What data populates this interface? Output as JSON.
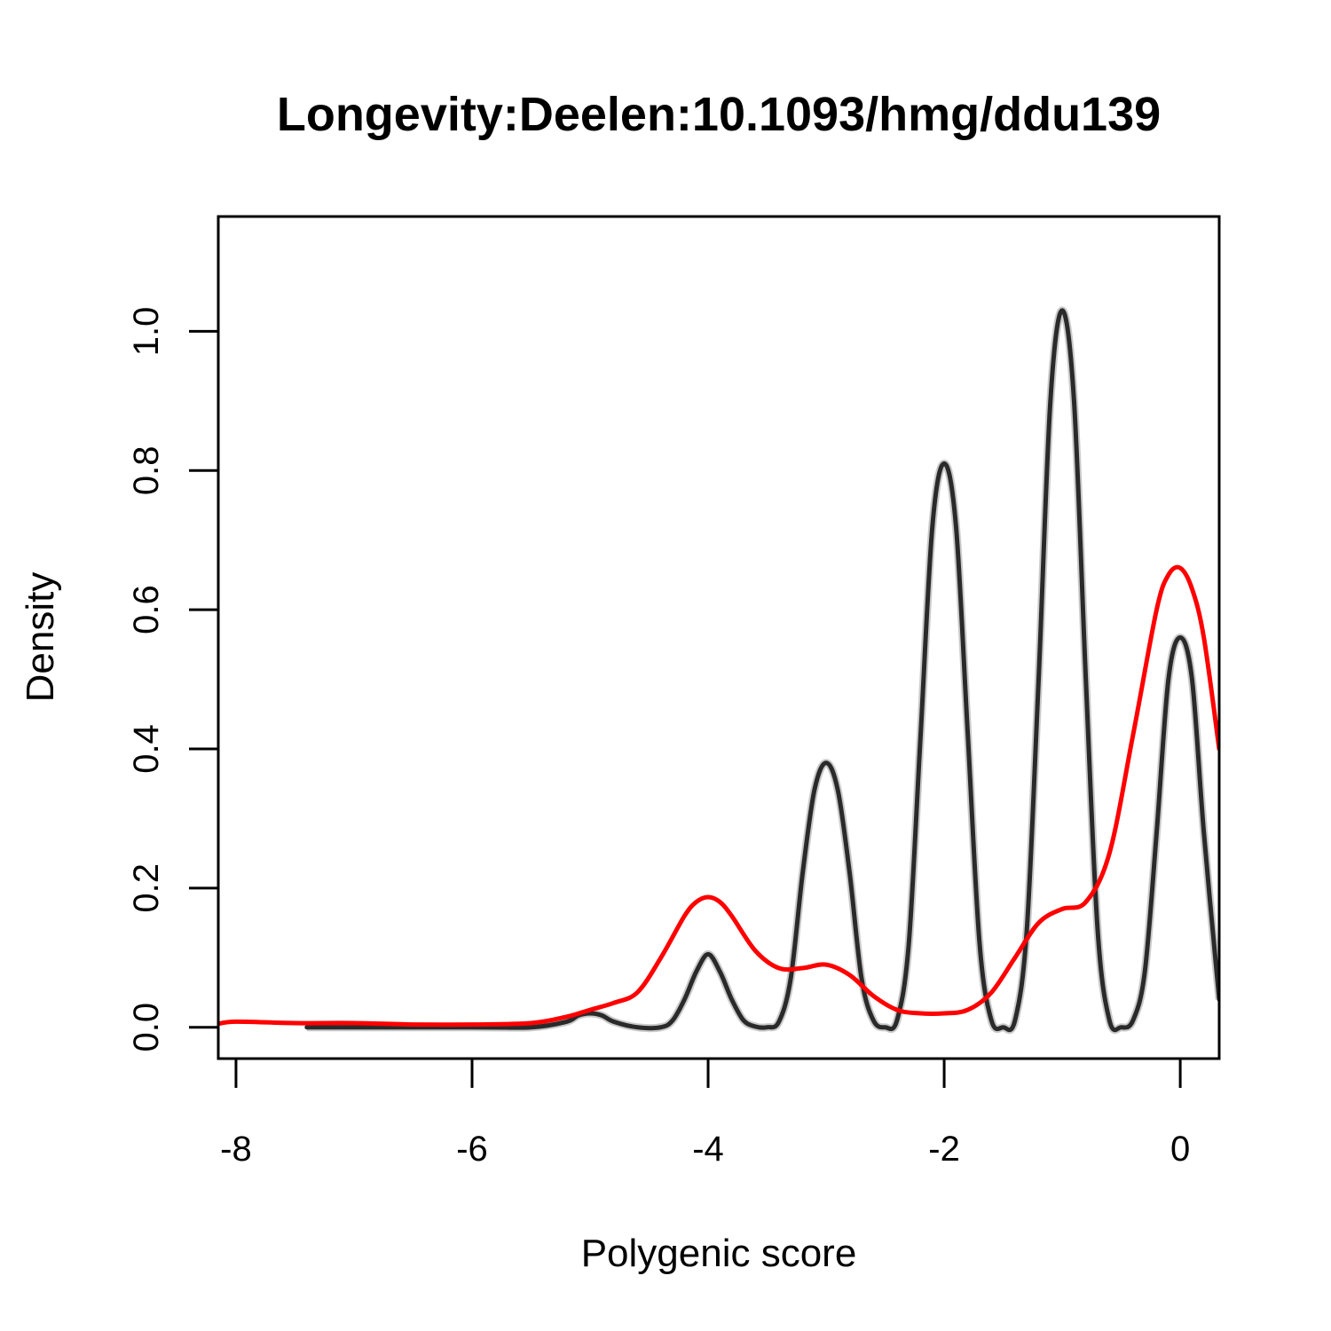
{
  "chart_data": {
    "type": "line",
    "title": "Longevity:Deelen:10.1093/hmg/ddu139",
    "xlabel": "Polygenic score",
    "ylabel": "Density",
    "xlim": [
      -8.15,
      0.33
    ],
    "ylim": [
      -0.045,
      1.165
    ],
    "x_ticks": [
      -8,
      -6,
      -4,
      -2,
      0
    ],
    "y_ticks": [
      0.0,
      0.2,
      0.4,
      0.6,
      0.8,
      1.0
    ],
    "x_tick_labels": [
      "-8",
      "-6",
      "-4",
      "-2",
      "0"
    ],
    "y_tick_labels": [
      "0.0",
      "0.2",
      "0.4",
      "0.6",
      "0.8",
      "1.0"
    ],
    "grid": false,
    "legend": "none",
    "series": [
      {
        "color": "#2a2a2a",
        "x": [
          -7.4,
          -6.0,
          -5.5,
          -5.2,
          -5.1,
          -5.0,
          -4.9,
          -4.8,
          -4.6,
          -4.4,
          -4.3,
          -4.2,
          -4.1,
          -4.0,
          -3.9,
          -3.8,
          -3.7,
          -3.6,
          -3.5,
          -3.4,
          -3.3,
          -3.2,
          -3.1,
          -3.0,
          -2.9,
          -2.8,
          -2.7,
          -2.6,
          -2.5,
          -2.4,
          -2.3,
          -2.2,
          -2.1,
          -2.0,
          -1.9,
          -1.8,
          -1.7,
          -1.6,
          -1.5,
          -1.4,
          -1.3,
          -1.2,
          -1.1,
          -1.0,
          -0.9,
          -0.8,
          -0.7,
          -0.6,
          -0.5,
          -0.4,
          -0.3,
          -0.2,
          -0.1,
          0.0,
          0.1,
          0.2,
          0.33
        ],
        "y": [
          0.0,
          0.0,
          0.0,
          0.008,
          0.017,
          0.02,
          0.017,
          0.008,
          0.0,
          0.0,
          0.01,
          0.04,
          0.08,
          0.105,
          0.08,
          0.04,
          0.01,
          0.001,
          0.0,
          0.008,
          0.07,
          0.22,
          0.34,
          0.38,
          0.34,
          0.22,
          0.07,
          0.01,
          0.0,
          0.01,
          0.12,
          0.42,
          0.72,
          0.81,
          0.72,
          0.42,
          0.12,
          0.01,
          0.0,
          0.01,
          0.14,
          0.5,
          0.9,
          1.03,
          0.9,
          0.5,
          0.14,
          0.01,
          0.0,
          0.01,
          0.08,
          0.28,
          0.5,
          0.56,
          0.5,
          0.28,
          0.04
        ]
      },
      {
        "color": "#ff0000",
        "x": [
          -8.15,
          -8.0,
          -7.5,
          -7.0,
          -6.5,
          -6.0,
          -5.5,
          -5.2,
          -5.0,
          -4.8,
          -4.6,
          -4.4,
          -4.2,
          -4.1,
          -4.0,
          -3.9,
          -3.8,
          -3.6,
          -3.4,
          -3.2,
          -3.0,
          -2.8,
          -2.6,
          -2.4,
          -2.2,
          -2.0,
          -1.8,
          -1.6,
          -1.4,
          -1.2,
          -1.0,
          -0.8,
          -0.6,
          -0.4,
          -0.2,
          -0.1,
          0.0,
          0.1,
          0.2,
          0.33
        ],
        "y": [
          0.005,
          0.008,
          0.006,
          0.006,
          0.004,
          0.004,
          0.006,
          0.015,
          0.025,
          0.035,
          0.05,
          0.1,
          0.16,
          0.18,
          0.187,
          0.18,
          0.16,
          0.11,
          0.085,
          0.085,
          0.09,
          0.075,
          0.045,
          0.025,
          0.02,
          0.02,
          0.025,
          0.05,
          0.1,
          0.15,
          0.17,
          0.18,
          0.25,
          0.42,
          0.6,
          0.65,
          0.66,
          0.63,
          0.56,
          0.4
        ]
      }
    ]
  }
}
